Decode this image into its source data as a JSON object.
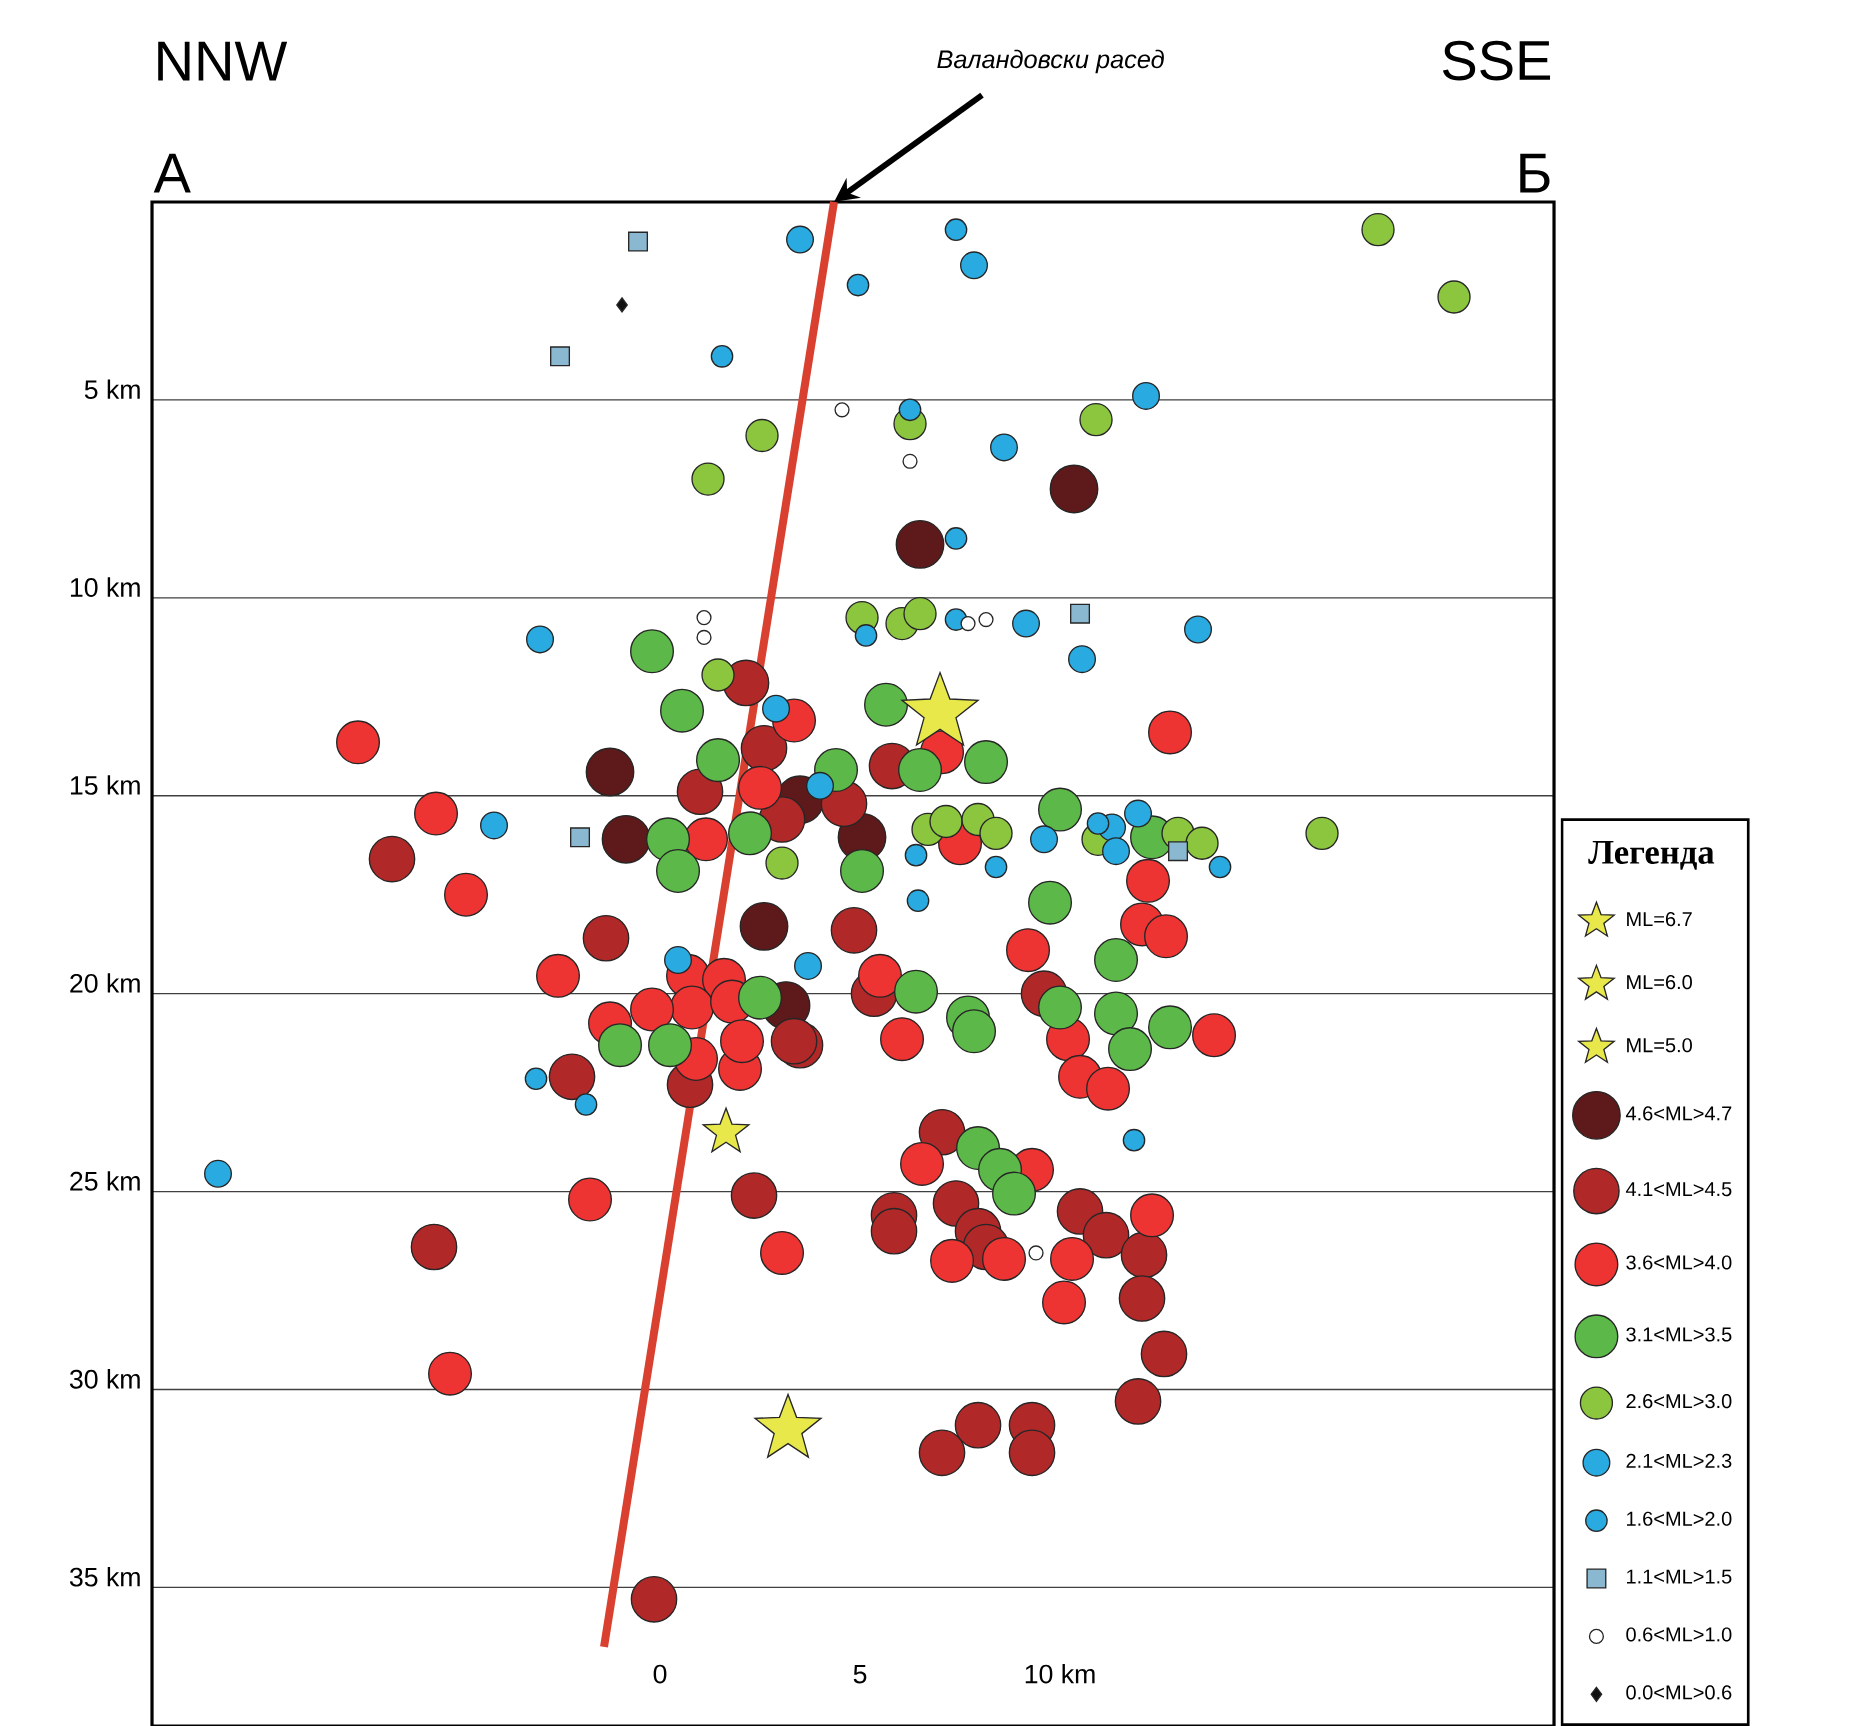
{
  "chart_data": {
    "type": "scatter",
    "annotations": [
      "NNW",
      "А",
      "SSE",
      "Б",
      {
        "text": "Валандовски расед",
        "x": 4.35,
        "y": 0
      }
    ],
    "legend_title": "Легенда",
    "legend": "right",
    "grid": "y",
    "xlim": [
      -12.7,
      22.35
    ],
    "ylim": [
      38.5,
      0
    ],
    "xticks": [
      0,
      5,
      {
        "value": 10,
        "label": "10 km"
      }
    ],
    "yticks": [
      {
        "value": 5,
        "label": "5 km"
      },
      {
        "value": 10,
        "label": "10 km"
      },
      {
        "value": 15,
        "label": "15 km"
      },
      {
        "value": 20,
        "label": "20 km"
      },
      {
        "value": 25,
        "label": "25 km"
      },
      {
        "value": 30,
        "label": "30 km"
      },
      {
        "value": 35,
        "label": "35 km"
      }
    ],
    "series": [
      {
        "name": "ML=6.7",
        "type": "scatter",
        "marker": "star",
        "color": "#e8e84a",
        "x": [
          7.0
        ],
        "values": [
          12.9
        ]
      },
      {
        "name": "ML=6.0",
        "type": "scatter",
        "marker": "star",
        "color": "#e8e84a",
        "x": [
          3.2
        ],
        "values": [
          31.0
        ]
      },
      {
        "name": "ML=5.0",
        "type": "scatter",
        "marker": "star",
        "color": "#e8e84a",
        "x": [
          1.65
        ],
        "values": [
          23.5
        ]
      },
      {
        "name": "4.6<ML>4.7",
        "type": "scatter",
        "marker": "circle",
        "color": "#5e1a1a",
        "x": [
          10.35,
          6.5,
          -1.25,
          3.5,
          -0.85,
          5.05,
          2.6,
          3.15
        ],
        "values": [
          7.25,
          8.65,
          14.4,
          15.1,
          16.1,
          16.05,
          18.3,
          20.3
        ]
      },
      {
        "name": "4.1<ML>4.5",
        "type": "scatter",
        "marker": "circle",
        "color": "#b02828",
        "x": [
          2.15,
          2.6,
          1.0,
          4.6,
          3.05,
          5.8,
          -6.7,
          -1.35,
          4.85,
          5.35,
          9.6,
          3.5,
          -2.2,
          0.75,
          3.35,
          7.05,
          2.35,
          5.85,
          5.85,
          7.4,
          7.95,
          8.15,
          10.5,
          11.15,
          12.1,
          12.05,
          -5.65,
          12.6,
          11.95,
          7.05,
          7.95,
          9.3,
          9.3,
          -0.15
        ],
        "values": [
          12.15,
          13.8,
          14.9,
          15.2,
          15.6,
          14.25,
          16.6,
          18.6,
          18.4,
          20.0,
          20.0,
          21.3,
          22.1,
          22.3,
          21.2,
          23.5,
          25.1,
          25.6,
          26.0,
          25.3,
          26.0,
          26.4,
          25.5,
          26.1,
          26.6,
          27.7,
          26.4,
          29.1,
          30.3,
          31.6,
          30.9,
          30.9,
          31.6,
          35.3
        ]
      },
      {
        "name": "3.6<ML>4.0",
        "type": "scatter",
        "marker": "circle",
        "color": "#ee3333",
        "x": [
          3.35,
          -7.55,
          12.75,
          7.05,
          2.5,
          -5.6,
          1.15,
          7.5,
          -4.85,
          12.2,
          null,
          12.05,
          12.65,
          9.2,
          -2.55,
          5.5,
          0.7,
          1.6,
          0.8,
          1.8,
          13.85,
          6.05,
          -1.25,
          -0.2,
          10.2,
          10.5,
          11.2,
          2.0,
          0.9,
          2.05,
          6.55,
          9.3,
          -1.75,
          7.3,
          8.6,
          10.3,
          12.3,
          10.1,
          3.05,
          -5.25
        ],
        "values": [
          13.1,
          13.65,
          13.4,
          13.9,
          14.8,
          15.45,
          16.1,
          16.2,
          17.5,
          17.15,
          null,
          18.25,
          18.55,
          18.9,
          19.55,
          19.55,
          19.55,
          19.65,
          20.35,
          20.2,
          21.05,
          21.15,
          20.75,
          20.4,
          21.15,
          22.1,
          22.4,
          21.9,
          21.65,
          21.2,
          24.3,
          24.45,
          25.2,
          26.75,
          26.7,
          26.7,
          25.6,
          27.8,
          26.55,
          29.6
        ]
      },
      {
        "name": "3.1<ML>3.5",
        "type": "scatter",
        "marker": "circle",
        "color": "#5cb848",
        "x": [
          -0.2,
          0.55,
          5.65,
          1.45,
          4.4,
          6.5,
          8.15,
          0.2,
          2.25,
          0.45,
          5.05,
          10.0,
          12.3,
          9.75,
          11.4,
          6.4,
          2.5,
          10.0,
          11.4,
          12.75,
          7.7,
          7.85,
          -1.0,
          0.25,
          11.75,
          7.95,
          8.5,
          8.85
        ],
        "values": [
          11.35,
          12.85,
          12.7,
          14.1,
          14.35,
          14.35,
          14.15,
          16.1,
          15.95,
          16.9,
          16.9,
          15.35,
          16.05,
          17.7,
          19.15,
          19.95,
          20.1,
          20.35,
          20.5,
          20.85,
          20.6,
          20.95,
          21.3,
          21.3,
          21.4,
          23.9,
          24.45,
          25.05
        ]
      },
      {
        "name": "2.6<ML>3.0",
        "type": "scatter",
        "marker": "circle",
        "color": "#8cc63f",
        "x": [
          17.95,
          19.85,
          6.25,
          10.9,
          2.55,
          1.2,
          5.05,
          6.05,
          6.5,
          1.45,
          3.05,
          6.7,
          7.15,
          7.95,
          8.4,
          10.95,
          12.95,
          13.55,
          16.55
        ],
        "values": [
          0.7,
          2.4,
          5.6,
          5.5,
          5.9,
          7.0,
          10.5,
          10.65,
          10.4,
          11.95,
          16.7,
          15.85,
          15.65,
          15.6,
          15.95,
          16.1,
          15.95,
          16.2,
          15.95
        ]
      },
      {
        "name": "2.1<ML>2.3",
        "type": "scatter",
        "marker": "circle",
        "color": "#29abe2",
        "x": [
          3.5,
          7.85,
          12.15,
          8.6,
          -3.0,
          9.15,
          13.45,
          10.55,
          2.9,
          -4.15,
          4.0,
          9.6,
          11.3,
          11.95,
          11.4,
          0.45,
          3.7,
          -11.05
        ],
        "values": [
          0.95,
          1.6,
          4.9,
          6.2,
          11.05,
          10.65,
          10.8,
          11.55,
          12.8,
          15.75,
          14.75,
          16.1,
          15.8,
          15.45,
          16.4,
          19.15,
          19.3,
          24.55
        ]
      },
      {
        "name": "1.6<ML>2.0",
        "type": "scatter",
        "marker": "circle",
        "color": "#29abe2",
        "x": [
          4.95,
          1.55,
          6.25,
          7.4,
          5.15,
          7.4,
          10.95,
          6.4,
          8.4,
          14.0,
          6.45,
          -3.1,
          -1.85,
          11.85,
          7.4
        ],
        "values": [
          2.1,
          3.9,
          5.25,
          8.5,
          10.95,
          10.55,
          15.7,
          16.5,
          16.8,
          16.8,
          17.65,
          22.15,
          22.8,
          23.7,
          0.7
        ]
      },
      {
        "name": "1.1<ML>1.5",
        "type": "scatter",
        "marker": "square",
        "color": "#8ab8d0",
        "x": [
          -0.55,
          -2.5,
          -2.0,
          10.5,
          12.95
        ],
        "values": [
          1.0,
          3.9,
          16.05,
          10.4,
          16.4
        ]
      },
      {
        "name": "0.6<ML>1.0",
        "type": "scatter",
        "marker": "circle",
        "color": "#ffffff",
        "x": [
          4.55,
          6.25,
          1.1,
          1.1,
          7.7,
          8.15,
          9.4
        ],
        "values": [
          5.25,
          6.55,
          10.5,
          11.0,
          10.65,
          10.55,
          26.55
        ]
      },
      {
        "name": "0.0<ML>0.6",
        "type": "scatter",
        "marker": "diamond",
        "color": "#111111",
        "x": [
          -0.95
        ],
        "values": [
          2.6
        ]
      },
      {
        "type": "line",
        "color": "#d9402f",
        "x": [
          4.35,
          -1.4
        ],
        "values": [
          0,
          36.5
        ]
      }
    ]
  }
}
